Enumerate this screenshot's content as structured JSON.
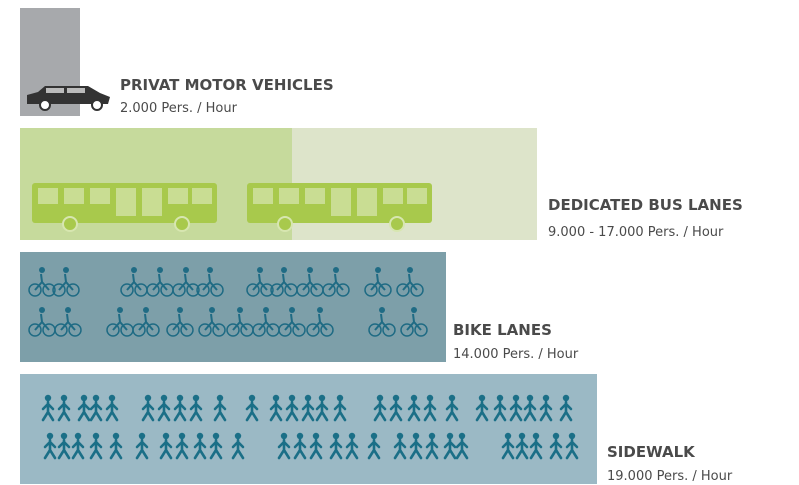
{
  "items": [
    {
      "title": "PRIVAT MOTOR VEHICLES",
      "subtitle": "2.000 Pers. / Hour"
    },
    {
      "title": "DEDICATED BUS LANES",
      "subtitle": "9.000 - 17.000 Pers. / Hour"
    },
    {
      "title": "BIKE LANES",
      "subtitle": "14.000 Pers. / Hour"
    },
    {
      "title": "SIDEWALK",
      "subtitle": "19.000 Pers. / Hour"
    }
  ]
}
